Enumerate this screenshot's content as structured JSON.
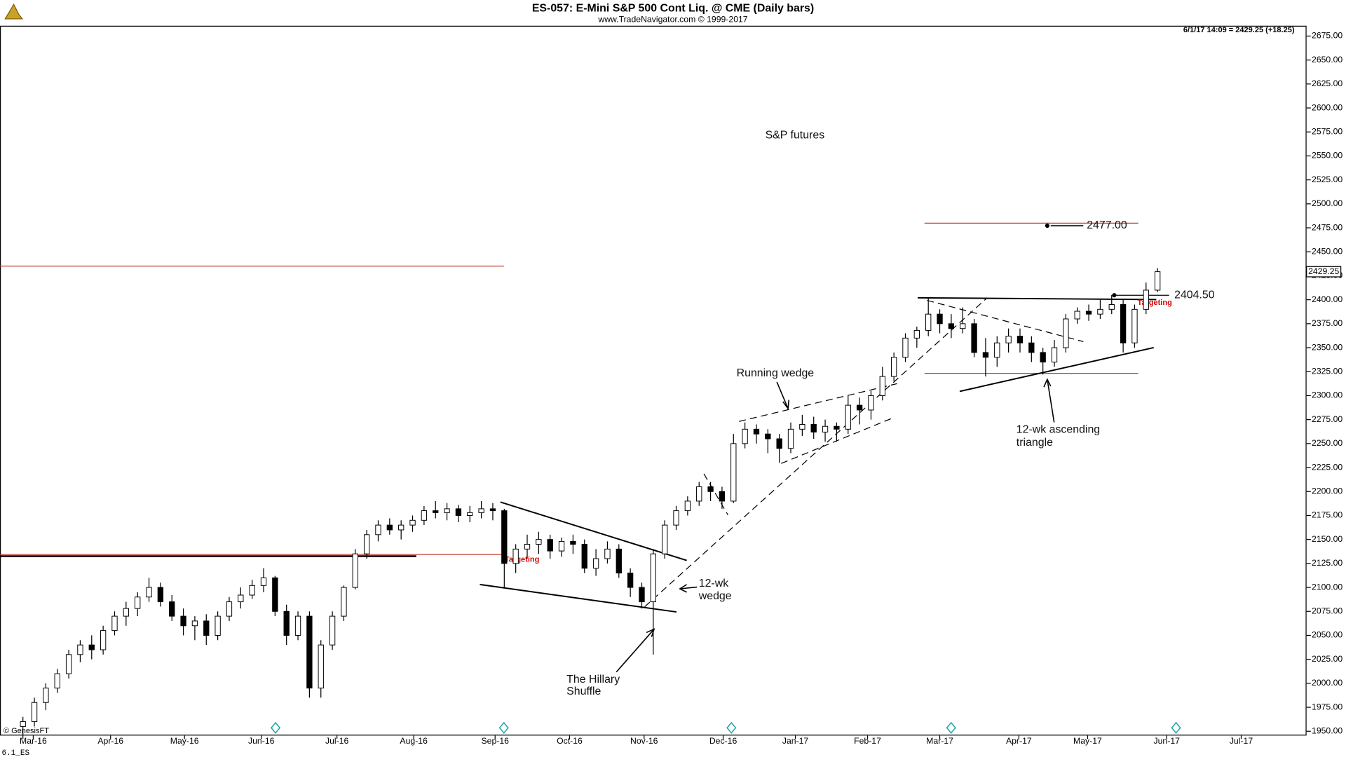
{
  "chart_data": {
    "type": "candlestick",
    "title": "ES-057:  E-Mini S&P 500 Cont Liq. @ CME  (Daily bars)",
    "subtitle": "www.TradeNavigator.com © 1999-2017",
    "info": "6/1/17 14:09 = 2429.25 (+18.25)",
    "last_price_label": "2429.25",
    "source": "© GenesisFT",
    "footer": "6.1_ES",
    "annotations": {
      "main": "S&P futures",
      "target_high": "2477.00",
      "breakout": "2404.50",
      "targeting_1": "Targeting",
      "targeting_2": "Targeting",
      "running_wedge": "Running wedge",
      "wedge_1": "12-wk",
      "wedge_2": "wedge",
      "triangle_1": "12-wk ascending",
      "triangle_2": "triangle",
      "hillary_1": "The Hillary",
      "hillary_2": "Shuffle"
    },
    "ylim": [
      1950,
      2675
    ],
    "xlim": [
      -2,
      112
    ],
    "yticks": [
      {
        "value": 1950,
        "label": "1950.00"
      },
      {
        "value": 1975,
        "label": "1975.00"
      },
      {
        "value": 2000,
        "label": "2000.00"
      },
      {
        "value": 2025,
        "label": "2025.00"
      },
      {
        "value": 2050,
        "label": "2050.00"
      },
      {
        "value": 2075,
        "label": "2075.00"
      },
      {
        "value": 2100,
        "label": "2100.00"
      },
      {
        "value": 2125,
        "label": "2125.00"
      },
      {
        "value": 2150,
        "label": "2150.00"
      },
      {
        "value": 2175,
        "label": "2175.00"
      },
      {
        "value": 2200,
        "label": "2200.00"
      },
      {
        "value": 2225,
        "label": "2225.00"
      },
      {
        "value": 2250,
        "label": "2250.00"
      },
      {
        "value": 2275,
        "label": "2275.00"
      },
      {
        "value": 2300,
        "label": "2300.00"
      },
      {
        "value": 2325,
        "label": "2325.00"
      },
      {
        "value": 2350,
        "label": "2350.00"
      },
      {
        "value": 2375,
        "label": "2375.00"
      },
      {
        "value": 2400,
        "label": "2400.00"
      },
      {
        "value": 2425,
        "label": "2425.00"
      },
      {
        "value": 2450,
        "label": "2450.00"
      },
      {
        "value": 2475,
        "label": "2475.00"
      },
      {
        "value": 2500,
        "label": "2500.00"
      },
      {
        "value": 2525,
        "label": "2525.00"
      },
      {
        "value": 2550,
        "label": "2550.00"
      },
      {
        "value": 2575,
        "label": "2575.00"
      },
      {
        "value": 2600,
        "label": "2600.00"
      },
      {
        "value": 2625,
        "label": "2625.00"
      },
      {
        "value": 2650,
        "label": "2650.00"
      },
      {
        "value": 2675,
        "label": "2675.00"
      }
    ],
    "xticks": [
      {
        "value": 0.9,
        "label": "Mar-16"
      },
      {
        "value": 7.65,
        "label": "Apr-16"
      },
      {
        "value": 14.1,
        "label": "May-16"
      },
      {
        "value": 20.8,
        "label": "Jun-16"
      },
      {
        "value": 27.4,
        "label": "Jul-16"
      },
      {
        "value": 34.1,
        "label": "Aug-16"
      },
      {
        "value": 41.2,
        "label": "Sep-16"
      },
      {
        "value": 47.7,
        "label": "Oct-16"
      },
      {
        "value": 54.2,
        "label": "Nov-16"
      },
      {
        "value": 61.1,
        "label": "Dec-16"
      },
      {
        "value": 67.4,
        "label": "Jan-17"
      },
      {
        "value": 73.7,
        "label": "Feb-17"
      },
      {
        "value": 80,
        "label": "Mar-17"
      },
      {
        "value": 86.9,
        "label": "Apr-17"
      },
      {
        "value": 92.9,
        "label": "May-17"
      },
      {
        "value": 99.8,
        "label": "Jun-17"
      },
      {
        "value": 106.3,
        "label": "Jul-17"
      }
    ],
    "ohlc": [
      [
        1955,
        1965,
        1942,
        1960
      ],
      [
        1960,
        1985,
        1955,
        1980
      ],
      [
        1980,
        2000,
        1972,
        1995
      ],
      [
        1995,
        2015,
        1990,
        2010
      ],
      [
        2010,
        2035,
        2005,
        2030
      ],
      [
        2030,
        2045,
        2022,
        2040
      ],
      [
        2040,
        2050,
        2025,
        2035
      ],
      [
        2035,
        2060,
        2030,
        2055
      ],
      [
        2055,
        2075,
        2050,
        2070
      ],
      [
        2070,
        2085,
        2060,
        2078
      ],
      [
        2078,
        2095,
        2070,
        2090
      ],
      [
        2090,
        2110,
        2085,
        2100
      ],
      [
        2100,
        2105,
        2080,
        2085
      ],
      [
        2085,
        2092,
        2065,
        2070
      ],
      [
        2070,
        2078,
        2050,
        2060
      ],
      [
        2060,
        2070,
        2045,
        2065
      ],
      [
        2065,
        2072,
        2040,
        2050
      ],
      [
        2050,
        2075,
        2045,
        2070
      ],
      [
        2070,
        2090,
        2065,
        2085
      ],
      [
        2085,
        2100,
        2078,
        2092
      ],
      [
        2092,
        2108,
        2088,
        2102
      ],
      [
        2102,
        2120,
        2095,
        2110
      ],
      [
        2110,
        2112,
        2070,
        2075
      ],
      [
        2075,
        2082,
        2040,
        2050
      ],
      [
        2050,
        2075,
        2045,
        2070
      ],
      [
        2070,
        2075,
        1985,
        1995
      ],
      [
        1995,
        2045,
        1985,
        2040
      ],
      [
        2040,
        2075,
        2035,
        2070
      ],
      [
        2070,
        2102,
        2065,
        2100
      ],
      [
        2100,
        2140,
        2098,
        2135
      ],
      [
        2135,
        2160,
        2130,
        2155
      ],
      [
        2155,
        2170,
        2148,
        2165
      ],
      [
        2165,
        2172,
        2155,
        2160
      ],
      [
        2160,
        2170,
        2150,
        2165
      ],
      [
        2165,
        2175,
        2158,
        2170
      ],
      [
        2170,
        2185,
        2165,
        2180
      ],
      [
        2180,
        2190,
        2172,
        2178
      ],
      [
        2178,
        2188,
        2170,
        2182
      ],
      [
        2182,
        2186,
        2168,
        2175
      ],
      [
        2175,
        2185,
        2168,
        2178
      ],
      [
        2178,
        2190,
        2172,
        2182
      ],
      [
        2182,
        2188,
        2170,
        2180
      ],
      [
        2180,
        2182,
        2100,
        2125
      ],
      [
        2125,
        2145,
        2115,
        2140
      ],
      [
        2140,
        2155,
        2130,
        2145
      ],
      [
        2145,
        2158,
        2135,
        2150
      ],
      [
        2150,
        2155,
        2130,
        2138
      ],
      [
        2138,
        2152,
        2132,
        2148
      ],
      [
        2148,
        2155,
        2135,
        2145
      ],
      [
        2145,
        2150,
        2115,
        2120
      ],
      [
        2120,
        2140,
        2112,
        2130
      ],
      [
        2130,
        2148,
        2125,
        2140
      ],
      [
        2140,
        2145,
        2110,
        2115
      ],
      [
        2115,
        2120,
        2090,
        2100
      ],
      [
        2100,
        2105,
        2078,
        2085
      ],
      [
        2085,
        2140,
        2030,
        2135
      ],
      [
        2135,
        2170,
        2130,
        2165
      ],
      [
        2165,
        2185,
        2160,
        2180
      ],
      [
        2180,
        2195,
        2175,
        2190
      ],
      [
        2190,
        2210,
        2185,
        2205
      ],
      [
        2205,
        2210,
        2190,
        2200
      ],
      [
        2200,
        2205,
        2182,
        2190
      ],
      [
        2190,
        2260,
        2188,
        2250
      ],
      [
        2250,
        2272,
        2245,
        2265
      ],
      [
        2265,
        2270,
        2250,
        2260
      ],
      [
        2260,
        2265,
        2240,
        2255
      ],
      [
        2255,
        2260,
        2230,
        2245
      ],
      [
        2245,
        2272,
        2240,
        2265
      ],
      [
        2265,
        2280,
        2258,
        2270
      ],
      [
        2270,
        2278,
        2255,
        2262
      ],
      [
        2262,
        2275,
        2252,
        2268
      ],
      [
        2268,
        2272,
        2252,
        2265
      ],
      [
        2265,
        2300,
        2260,
        2290
      ],
      [
        2290,
        2298,
        2270,
        2285
      ],
      [
        2285,
        2305,
        2275,
        2300
      ],
      [
        2300,
        2330,
        2295,
        2320
      ],
      [
        2320,
        2345,
        2315,
        2340
      ],
      [
        2340,
        2365,
        2335,
        2360
      ],
      [
        2360,
        2372,
        2350,
        2368
      ],
      [
        2368,
        2402,
        2362,
        2385
      ],
      [
        2385,
        2390,
        2365,
        2375
      ],
      [
        2375,
        2385,
        2360,
        2370
      ],
      [
        2370,
        2392,
        2365,
        2375
      ],
      [
        2375,
        2380,
        2340,
        2345
      ],
      [
        2345,
        2360,
        2320,
        2340
      ],
      [
        2340,
        2362,
        2330,
        2355
      ],
      [
        2355,
        2370,
        2345,
        2362
      ],
      [
        2362,
        2370,
        2345,
        2355
      ],
      [
        2355,
        2362,
        2335,
        2345
      ],
      [
        2345,
        2350,
        2322,
        2335
      ],
      [
        2335,
        2358,
        2330,
        2350
      ],
      [
        2350,
        2385,
        2345,
        2380
      ],
      [
        2380,
        2392,
        2375,
        2388
      ],
      [
        2388,
        2395,
        2378,
        2385
      ],
      [
        2385,
        2400,
        2380,
        2390
      ],
      [
        2390,
        2405,
        2385,
        2395
      ],
      [
        2395,
        2400,
        2345,
        2355
      ],
      [
        2355,
        2395,
        2350,
        2390
      ],
      [
        2390,
        2418,
        2385,
        2410
      ],
      [
        2410,
        2433,
        2408,
        2429.25
      ]
    ]
  }
}
